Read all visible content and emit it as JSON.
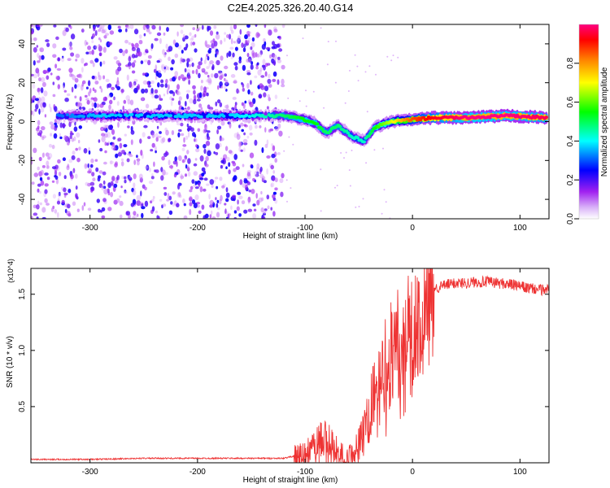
{
  "title": "C2E4.2025.326.20.40.G14",
  "colors": {
    "line": "#ee3333",
    "background": "#ffffff",
    "axis": "#000000"
  },
  "chart_data": [
    {
      "type": "heatmap",
      "xlabel": "Height of straight line (km)",
      "ylabel": "Frequency (Hz)",
      "xlim": [
        -355,
        127
      ],
      "ylim": [
        -50,
        50
      ],
      "xticks": [
        -300,
        -200,
        -100,
        0,
        100
      ],
      "yticks": [
        -40,
        -20,
        0,
        20,
        40
      ],
      "colorbar": {
        "label": "Normalized spectral amplitude",
        "range": [
          0,
          1
        ],
        "ticks": [
          "0.0",
          "0.2",
          "0.4",
          "0.6",
          "0.8"
        ],
        "colormap": [
          "#ffffff",
          "#a020f0",
          "#0000ff",
          "#00ffff",
          "#00ff00",
          "#ffff00",
          "#ff8000",
          "#ff0000",
          "#ff0080"
        ]
      },
      "main_ridge": [
        {
          "x": -330,
          "y": 3,
          "amp": 0.3
        },
        {
          "x": -290,
          "y": 3,
          "amp": 0.35
        },
        {
          "x": -250,
          "y": 3,
          "amp": 0.35
        },
        {
          "x": -210,
          "y": 3,
          "amp": 0.35
        },
        {
          "x": -170,
          "y": 3,
          "amp": 0.35
        },
        {
          "x": -140,
          "y": 3,
          "amp": 0.4
        },
        {
          "x": -120,
          "y": 3,
          "amp": 0.45
        },
        {
          "x": -100,
          "y": 1,
          "amp": 0.5
        },
        {
          "x": -90,
          "y": -1,
          "amp": 0.5
        },
        {
          "x": -80,
          "y": -6,
          "amp": 0.45
        },
        {
          "x": -70,
          "y": -2,
          "amp": 0.45
        },
        {
          "x": -55,
          "y": -8,
          "amp": 0.4
        },
        {
          "x": -45,
          "y": -10,
          "amp": 0.4
        },
        {
          "x": -35,
          "y": -3,
          "amp": 0.5
        },
        {
          "x": -20,
          "y": 0,
          "amp": 0.6
        },
        {
          "x": 0,
          "y": 1,
          "amp": 0.8
        },
        {
          "x": 20,
          "y": 2,
          "amp": 0.9
        },
        {
          "x": 50,
          "y": 2,
          "amp": 1.0
        },
        {
          "x": 90,
          "y": 3,
          "amp": 1.0
        },
        {
          "x": 125,
          "y": 2,
          "amp": 0.95
        }
      ],
      "noise_region_x": [
        -355,
        -120
      ],
      "noise_amplitude_range": [
        0.0,
        0.2
      ]
    },
    {
      "type": "line",
      "xlabel": "Height of straight line (km)",
      "ylabel": "SNR (10 * v/v)",
      "y_multiplier": "(x10^4)",
      "xlim": [
        -355,
        127
      ],
      "ylim": [
        0,
        1.73
      ],
      "xticks": [
        -300,
        -200,
        -100,
        0,
        100
      ],
      "yticks": [
        0.5,
        1.0,
        1.5
      ],
      "series": [
        {
          "name": "SNR",
          "x": [
            -355,
            -300,
            -250,
            -200,
            -150,
            -120,
            -100,
            -90,
            -80,
            -75,
            -70,
            -60,
            -55,
            -50,
            -45,
            -40,
            -35,
            -30,
            -25,
            -20,
            -15,
            -10,
            -5,
            0,
            5,
            10,
            15,
            20,
            30,
            40,
            50,
            60,
            70,
            80,
            90,
            100,
            110,
            120,
            127
          ],
          "values": [
            0.03,
            0.03,
            0.04,
            0.04,
            0.04,
            0.04,
            0.08,
            0.18,
            0.22,
            0.16,
            0.12,
            0.05,
            0.08,
            0.18,
            0.32,
            0.45,
            0.62,
            0.78,
            0.88,
            0.98,
            1.05,
            1.1,
            1.15,
            1.22,
            1.32,
            1.42,
            1.5,
            1.55,
            1.58,
            1.6,
            1.6,
            1.61,
            1.61,
            1.6,
            1.59,
            1.57,
            1.55,
            1.54,
            1.55
          ]
        }
      ]
    }
  ]
}
